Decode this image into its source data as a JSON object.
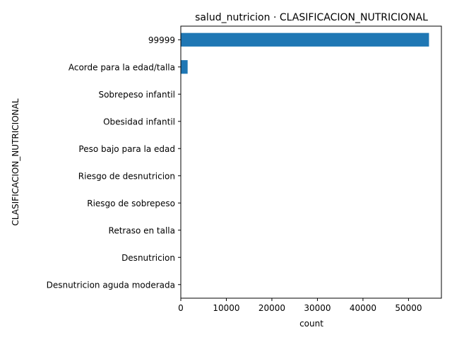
{
  "chart_data": {
    "type": "bar",
    "orientation": "horizontal",
    "title": "salud_nutricion · CLASIFICACION_NUTRICIONAL",
    "xlabel": "count",
    "ylabel": "CLASIFICACION_NUTRICIONAL",
    "categories": [
      "99999",
      "Acorde para la edad/talla",
      "Sobrepeso infantil",
      "Obesidad infantil",
      "Peso bajo para la edad",
      "Riesgo de desnutricion",
      "Riesgo de sobrepeso",
      "Retraso en talla",
      "Desnutricion",
      "Desnutricion aguda moderada"
    ],
    "values": [
      54500,
      1500,
      60,
      40,
      30,
      20,
      15,
      10,
      5,
      3
    ],
    "xlim": [
      0,
      57225
    ],
    "xticks": [
      0,
      10000,
      20000,
      30000,
      40000,
      50000
    ],
    "grid": false,
    "bar_color": "#1f77b4"
  }
}
